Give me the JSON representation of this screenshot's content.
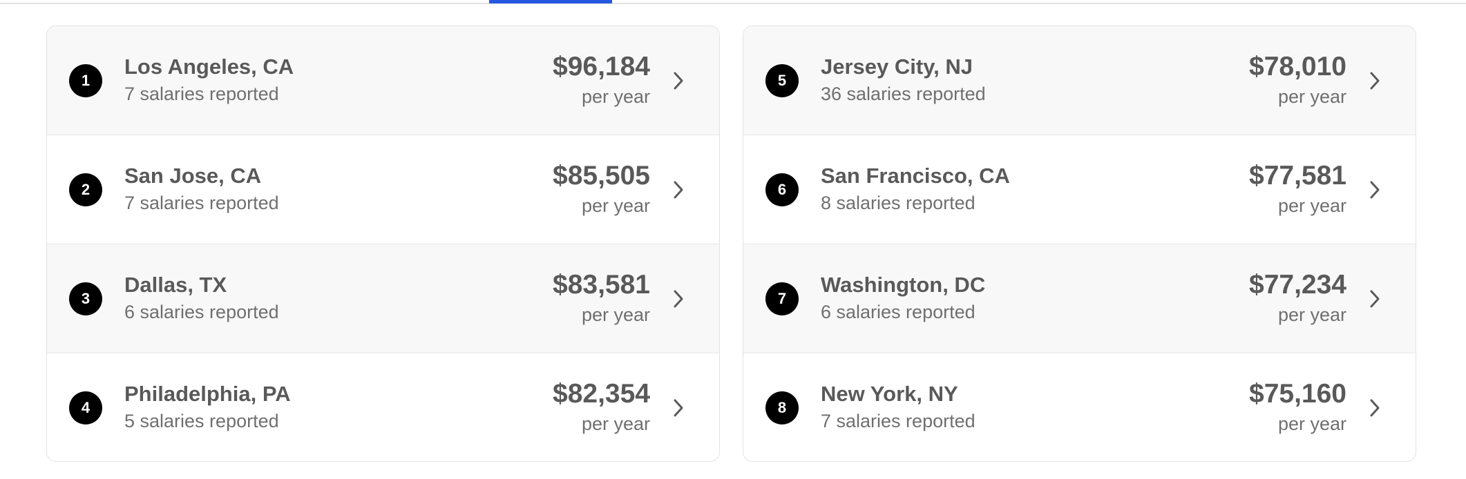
{
  "colors": {
    "tab_indicator": "#2557e0",
    "text": "#595959",
    "rank_badge": "#000000"
  },
  "chevron_icon": "chevron-right-icon",
  "columns": [
    {
      "rows": [
        {
          "rank": "1",
          "city": "Los Angeles, CA",
          "count": "7 salaries reported",
          "amount": "$96,184",
          "period": "per year"
        },
        {
          "rank": "2",
          "city": "San Jose, CA",
          "count": "7 salaries reported",
          "amount": "$85,505",
          "period": "per year"
        },
        {
          "rank": "3",
          "city": "Dallas, TX",
          "count": "6 salaries reported",
          "amount": "$83,581",
          "period": "per year"
        },
        {
          "rank": "4",
          "city": "Philadelphia, PA",
          "count": "5 salaries reported",
          "amount": "$82,354",
          "period": "per year"
        }
      ]
    },
    {
      "rows": [
        {
          "rank": "5",
          "city": "Jersey City, NJ",
          "count": "36 salaries reported",
          "amount": "$78,010",
          "period": "per year"
        },
        {
          "rank": "6",
          "city": "San Francisco, CA",
          "count": "8 salaries reported",
          "amount": "$77,581",
          "period": "per year"
        },
        {
          "rank": "7",
          "city": "Washington, DC",
          "count": "6 salaries reported",
          "amount": "$77,234",
          "period": "per year"
        },
        {
          "rank": "8",
          "city": "New York, NY",
          "count": "7 salaries reported",
          "amount": "$75,160",
          "period": "per year"
        }
      ]
    }
  ]
}
